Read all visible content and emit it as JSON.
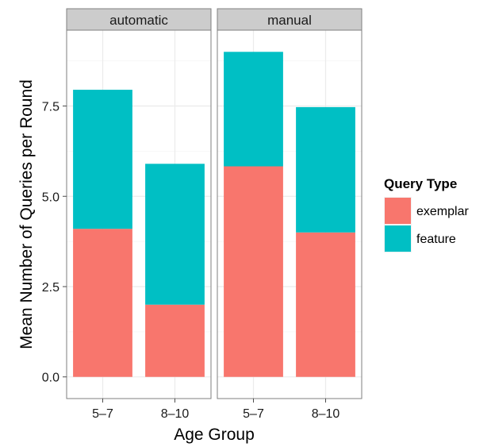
{
  "chart_data": {
    "type": "bar",
    "stacked": true,
    "facets": [
      {
        "label": "automatic",
        "categories": [
          "5–7",
          "8–10"
        ],
        "series": [
          {
            "name": "exemplar",
            "values": [
              4.1,
              2.0
            ]
          },
          {
            "name": "feature",
            "values": [
              3.85,
              3.9
            ]
          }
        ]
      },
      {
        "label": "manual",
        "categories": [
          "5–7",
          "8–10"
        ],
        "series": [
          {
            "name": "exemplar",
            "values": [
              5.83,
              4.0
            ]
          },
          {
            "name": "feature",
            "values": [
              3.17,
              3.47
            ]
          }
        ]
      }
    ],
    "xlabel": "Age Group",
    "ylabel": "Mean Number of Queries per Round",
    "ylim": [
      -0.6,
      9.6
    ],
    "yticks": [
      0.0,
      2.5,
      5.0,
      7.5
    ],
    "ytick_labels": [
      "0.0",
      "2.5",
      "5.0",
      "7.5"
    ],
    "grid": true,
    "legend": {
      "title": "Query Type",
      "position": "right",
      "entries": [
        "exemplar",
        "feature"
      ]
    },
    "colors": {
      "exemplar": "#F8766D",
      "feature": "#00BFC4",
      "panel_bg": "#ffffff",
      "strip_bg": "#cccccc",
      "border": "#7f7f7f",
      "grid_major": "#ebebeb",
      "grid_minor": "#f5f5f5"
    }
  }
}
